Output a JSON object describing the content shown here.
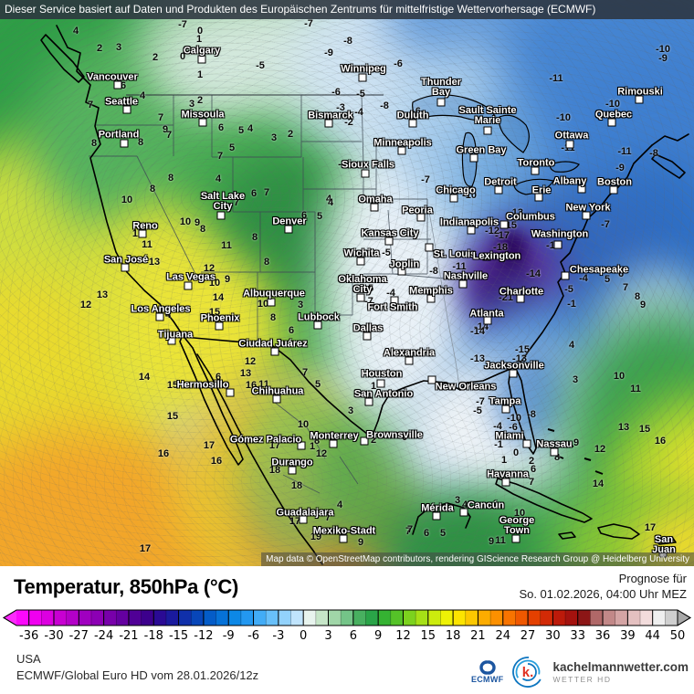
{
  "banner": {
    "text": "Dieser Service basiert auf Daten und Produkten des Europäischen Zentrums für mittelfristige Wettervorhersage (ECMWF)"
  },
  "map": {
    "attribution": "Map data © OpenStreetMap contributors, rendering GIScience Research Group @ Heidelberg University",
    "cities": [
      [
        "Vancouver",
        123,
        85,
        129,
        93
      ],
      [
        "Seattle",
        133,
        112,
        139,
        120
      ],
      [
        "Portland",
        130,
        148,
        136,
        157
      ],
      [
        "Calgary",
        221,
        56,
        221,
        65
      ],
      [
        "Missoula",
        222,
        126,
        222,
        134
      ],
      [
        "Bismarck",
        362,
        127,
        360,
        135
      ],
      [
        "Winnipeg",
        398,
        76,
        397,
        85
      ],
      [
        "Thunder\nBay",
        483,
        96,
        483,
        112
      ],
      [
        "Duluth",
        452,
        127,
        452,
        135
      ],
      [
        "Minneapolis",
        441,
        157,
        440,
        165
      ],
      [
        "Sioux Falls",
        403,
        181,
        400,
        190
      ],
      [
        "Sault Sainte\nMarie",
        534,
        127,
        534,
        143
      ],
      [
        "Green Bay",
        527,
        165,
        519,
        173
      ],
      [
        "Toronto",
        587,
        179,
        586,
        187
      ],
      [
        "Ottawa",
        626,
        149,
        624,
        158
      ],
      [
        "Quebec",
        672,
        126,
        670,
        134
      ],
      [
        "Rimouski",
        701,
        101,
        700,
        109
      ],
      [
        "Detroit",
        548,
        200,
        546,
        208
      ],
      [
        "Erie",
        593,
        209,
        590,
        216
      ],
      [
        "Albany",
        624,
        199,
        637,
        207
      ],
      [
        "Boston",
        673,
        200,
        672,
        208
      ],
      [
        "New York",
        644,
        228,
        642,
        236
      ],
      [
        "Chicago",
        499,
        209,
        497,
        217
      ],
      [
        "Peoria",
        457,
        231,
        461,
        238
      ],
      [
        "Indianapolis",
        514,
        244,
        516,
        252
      ],
      [
        "Columbus",
        581,
        238,
        552,
        246
      ],
      [
        "Washington",
        613,
        257,
        611,
        268
      ],
      [
        "St. Louis",
        498,
        279,
        470,
        271
      ],
      [
        "Lexington",
        544,
        281,
        533,
        281
      ],
      [
        "Kansas City",
        427,
        256,
        426,
        264
      ],
      [
        "Wichita",
        396,
        278,
        395,
        286
      ],
      [
        "Joplin",
        443,
        290,
        440,
        297
      ],
      [
        "Oklahoma\nCity",
        397,
        312,
        395,
        326
      ],
      [
        "Fort Smith",
        430,
        337,
        432,
        329
      ],
      [
        "Dallas",
        403,
        360,
        402,
        368
      ],
      [
        "Lubbock",
        349,
        348,
        348,
        356
      ],
      [
        "Memphis",
        472,
        319,
        472,
        327
      ],
      [
        "Nashville",
        510,
        303,
        507,
        311
      ],
      [
        "Atlanta",
        533,
        344,
        534,
        351
      ],
      [
        "Charlotte",
        571,
        320,
        570,
        327
      ],
      [
        "Chesapeake",
        656,
        296,
        619,
        302
      ],
      [
        "Jacksonville",
        563,
        401,
        562,
        409
      ],
      [
        "New Orleans",
        510,
        424,
        473,
        416
      ],
      [
        "Alexandria",
        448,
        387,
        448,
        395
      ],
      [
        "Houston",
        418,
        410,
        417,
        420
      ],
      [
        "San Antonio",
        420,
        432,
        404,
        440
      ],
      [
        "Brownsville",
        432,
        477,
        399,
        483
      ],
      [
        "Tampa",
        553,
        440,
        554,
        448
      ],
      [
        "Miami",
        558,
        478,
        577,
        486
      ],
      [
        "Nassau",
        607,
        487,
        607,
        495
      ],
      [
        "Havanna",
        556,
        520,
        554,
        528
      ],
      [
        "Mérida",
        479,
        557,
        478,
        565
      ],
      [
        "Cancún",
        532,
        554,
        508,
        561
      ],
      [
        "George\nTown",
        566,
        576,
        565,
        590
      ],
      [
        "San Juan",
        727,
        597,
        726,
        606
      ],
      [
        "Hermosillo",
        222,
        422,
        252,
        430
      ],
      [
        "Chihuahua",
        304,
        429,
        303,
        437
      ],
      [
        "Ciudad Juárez",
        299,
        377,
        301,
        385
      ],
      [
        "Gómez Palacio",
        291,
        482,
        330,
        488
      ],
      [
        "Durango",
        320,
        507,
        320,
        515
      ],
      [
        "Monterrey",
        366,
        478,
        365,
        486
      ],
      [
        "Guadalajara",
        334,
        562,
        332,
        569
      ],
      [
        "Mexiko-Stadt",
        377,
        582,
        376,
        590
      ],
      [
        "Denver",
        317,
        243,
        316,
        251
      ],
      [
        "Salt Lake\nCity",
        244,
        221,
        242,
        236
      ],
      [
        "Reno",
        159,
        248,
        156,
        256
      ],
      [
        "San José",
        138,
        285,
        137,
        293
      ],
      [
        "Las Vegas",
        209,
        304,
        206,
        313
      ],
      [
        "Los Angeles",
        176,
        339,
        175,
        347
      ],
      [
        "Tijuana",
        192,
        367,
        188,
        373
      ],
      [
        "Phoenix",
        241,
        349,
        240,
        357
      ],
      [
        "Albuquerque",
        300,
        322,
        297,
        331
      ],
      [
        "Omaha",
        411,
        219,
        410,
        227
      ]
    ],
    "temps": [
      [
        "4",
        83,
        34
      ],
      [
        "0",
        219,
        34
      ],
      [
        "1",
        218,
        43
      ],
      [
        "2",
        109,
        53
      ],
      [
        "3",
        130,
        52
      ],
      [
        "2",
        170,
        63
      ],
      [
        "0",
        200,
        62
      ],
      [
        "1",
        219,
        82
      ],
      [
        "6",
        135,
        94
      ],
      [
        "-5",
        285,
        72
      ],
      [
        "-7",
        200,
        27
      ],
      [
        "-7",
        338,
        26
      ],
      [
        "7",
        99,
        115
      ],
      [
        "4",
        156,
        105
      ],
      [
        "2",
        219,
        110
      ],
      [
        "3",
        210,
        114
      ],
      [
        "7",
        176,
        129
      ],
      [
        "9",
        181,
        142
      ],
      [
        "7",
        185,
        148
      ],
      [
        "6",
        242,
        140
      ],
      [
        "5",
        264,
        143
      ],
      [
        "4",
        274,
        141
      ],
      [
        "3",
        300,
        151
      ],
      [
        "2",
        318,
        147
      ],
      [
        "8",
        103,
        157
      ],
      [
        "8",
        154,
        156
      ],
      [
        "7",
        241,
        171
      ],
      [
        "5",
        254,
        162
      ],
      [
        "-9",
        360,
        58
      ],
      [
        "-8",
        381,
        45
      ],
      [
        "-6",
        368,
        101
      ],
      [
        "-3",
        373,
        118
      ],
      [
        "-4",
        393,
        123
      ],
      [
        "-2",
        382,
        134
      ],
      [
        "-6",
        436,
        70
      ],
      [
        "-5",
        395,
        103
      ],
      [
        "-8",
        421,
        116
      ],
      [
        "-6",
        456,
        122
      ],
      [
        "-1",
        375,
        180
      ],
      [
        "-7",
        466,
        197
      ],
      [
        "-11",
        609,
        86
      ],
      [
        "-10",
        726,
        54
      ],
      [
        "-9",
        726,
        64
      ],
      [
        "-10",
        671,
        114
      ],
      [
        "-10",
        617,
        129
      ],
      [
        "-11",
        622,
        162
      ],
      [
        "-11",
        684,
        166
      ],
      [
        "-9",
        679,
        184
      ],
      [
        "-8",
        716,
        168
      ],
      [
        "-7",
        663,
        246
      ],
      [
        "-10",
        514,
        214
      ],
      [
        "-12",
        539,
        253
      ],
      [
        "-15",
        558,
        247
      ],
      [
        "-13",
        565,
        233
      ],
      [
        "-17",
        550,
        258
      ],
      [
        "-18",
        548,
        271
      ],
      [
        "-12",
        606,
        269
      ],
      [
        "-11",
        503,
        292
      ],
      [
        "-8",
        475,
        297
      ],
      [
        "-14",
        584,
        300
      ],
      [
        "-21",
        554,
        326
      ],
      [
        "-5",
        623,
        317
      ],
      [
        "-1",
        626,
        333
      ],
      [
        "-4",
        639,
        305
      ],
      [
        "-14",
        527,
        358
      ],
      [
        "5",
        665,
        306
      ],
      [
        "6",
        680,
        300
      ],
      [
        "7",
        685,
        315
      ],
      [
        "8",
        698,
        325
      ],
      [
        "9",
        704,
        334
      ],
      [
        "4",
        360,
        218
      ],
      [
        "6",
        333,
        236
      ],
      [
        "5",
        350,
        237
      ],
      [
        "4",
        362,
        222
      ],
      [
        "-5",
        423,
        277
      ],
      [
        "-4",
        428,
        321
      ],
      [
        "-7",
        404,
        330
      ],
      [
        "5",
        406,
        316
      ],
      [
        "8",
        187,
        195
      ],
      [
        "4",
        239,
        196
      ],
      [
        "8",
        167,
        207
      ],
      [
        "10",
        139,
        219
      ],
      [
        "6",
        278,
        212
      ],
      [
        "7",
        292,
        211
      ],
      [
        "7",
        259,
        222
      ],
      [
        "10",
        203,
        243
      ],
      [
        "9",
        216,
        244
      ],
      [
        "8",
        222,
        251
      ],
      [
        "12",
        151,
        256
      ],
      [
        "11",
        161,
        268
      ],
      [
        "11",
        248,
        269
      ],
      [
        "8",
        279,
        260
      ],
      [
        "8",
        292,
        287
      ],
      [
        "13",
        169,
        287
      ],
      [
        "13",
        112,
        323
      ],
      [
        "12",
        94,
        334
      ],
      [
        "12",
        229,
        294
      ],
      [
        "10",
        235,
        310
      ],
      [
        "9",
        249,
        306
      ],
      [
        "14",
        239,
        326
      ],
      [
        "15",
        235,
        342
      ],
      [
        "10",
        288,
        333
      ],
      [
        "3",
        329,
        334
      ],
      [
        "8",
        299,
        348
      ],
      [
        "6",
        319,
        362
      ],
      [
        "4",
        184,
        345
      ],
      [
        "14",
        158,
        413
      ],
      [
        "15",
        189,
        422
      ],
      [
        "15",
        189,
        456
      ],
      [
        "16",
        179,
        497
      ],
      [
        "17",
        229,
        488
      ],
      [
        "16",
        237,
        505
      ],
      [
        "17",
        159,
        601
      ],
      [
        "6",
        239,
        413
      ],
      [
        "12",
        274,
        396
      ],
      [
        "13",
        269,
        409
      ],
      [
        "16",
        275,
        422
      ],
      [
        "11",
        289,
        421
      ],
      [
        "7",
        334,
        408
      ],
      [
        "5",
        348,
        421
      ],
      [
        "10",
        332,
        465
      ],
      [
        "8",
        347,
        483
      ],
      [
        "1",
        342,
        489
      ],
      [
        "12",
        352,
        497
      ],
      [
        "17",
        301,
        488
      ],
      [
        "18",
        301,
        515
      ],
      [
        "18",
        325,
        532
      ],
      [
        "4",
        372,
        553
      ],
      [
        "7",
        359,
        567
      ],
      [
        "17",
        323,
        571
      ],
      [
        "19",
        346,
        588
      ],
      [
        "9",
        395,
        594
      ],
      [
        "7",
        447,
        582
      ],
      [
        "1",
        409,
        423
      ],
      [
        "3",
        384,
        450
      ],
      [
        "2",
        409,
        482
      ],
      [
        "0",
        443,
        479
      ],
      [
        "-14",
        523,
        363
      ],
      [
        "-15",
        572,
        383
      ],
      [
        "-13",
        523,
        393
      ],
      [
        "-13",
        569,
        393
      ],
      [
        "4",
        626,
        378
      ],
      [
        "3",
        630,
        416
      ],
      [
        "10",
        678,
        412
      ],
      [
        "11",
        696,
        426
      ],
      [
        "-7",
        526,
        440
      ],
      [
        "-5",
        523,
        450
      ],
      [
        "-10",
        563,
        458
      ],
      [
        "-4",
        545,
        467
      ],
      [
        "-8",
        582,
        454
      ],
      [
        "-6",
        562,
        468
      ],
      [
        "-1",
        546,
        487
      ],
      [
        "0",
        565,
        496
      ],
      [
        "1",
        552,
        504
      ],
      [
        "2",
        582,
        505
      ],
      [
        "6",
        584,
        514
      ],
      [
        "9",
        631,
        485
      ],
      [
        "8",
        610,
        501
      ],
      [
        "7",
        582,
        528
      ],
      [
        "12",
        657,
        492
      ],
      [
        "13",
        683,
        468
      ],
      [
        "15",
        706,
        470
      ],
      [
        "16",
        723,
        483
      ],
      [
        "14",
        655,
        530
      ],
      [
        "3",
        501,
        548
      ],
      [
        "4",
        509,
        553
      ],
      [
        "7",
        449,
        580
      ],
      [
        "6",
        467,
        584
      ],
      [
        "5",
        485,
        584
      ],
      [
        "10",
        569,
        562
      ],
      [
        "9",
        538,
        593
      ],
      [
        "11",
        548,
        592
      ],
      [
        "17",
        712,
        578
      ]
    ]
  },
  "footer": {
    "title": "Temperatur, 850hPa (°C)",
    "forecast_label": "Prognose für",
    "forecast_time": "So. 01.02.2026, 04:00 Uhr MEZ",
    "region": "USA",
    "model_run": "ECMWF/Global Euro HD vom  28.01.2026/12z",
    "ecmwf_logo_text": "ECMWF",
    "brand_k": "k.",
    "brand": "kachelmannwetter.com",
    "brand_sub": "WETTER HD"
  },
  "legend": {
    "labels": [
      "-36",
      "-30",
      "-27",
      "-24",
      "-21",
      "-18",
      "-15",
      "-12",
      "-9",
      "-6",
      "-3",
      "0",
      "3",
      "6",
      "9",
      "12",
      "15",
      "18",
      "21",
      "24",
      "27",
      "30",
      "33",
      "36",
      "39",
      "44",
      "50"
    ],
    "cells": [
      "#fc08fc",
      "#f000f0",
      "#dc00e0",
      "#c800d2",
      "#b400c8",
      "#a000c0",
      "#8c00b4",
      "#7800aa",
      "#6400a0",
      "#500096",
      "#3c008c",
      "#2a0a94",
      "#1a1a9e",
      "#1030aa",
      "#0846b8",
      "#045cc8",
      "#0672d8",
      "#0d88e6",
      "#2398f0",
      "#42acf6",
      "#68c0fa",
      "#92d2fc",
      "#c0e4fd",
      "#e8f4ee",
      "#c6e6c8",
      "#a0d6a8",
      "#74c488",
      "#48b060",
      "#2aa448",
      "#35b232",
      "#55c228",
      "#7cd21e",
      "#a6e016",
      "#ccec0e",
      "#eef206",
      "#fce400",
      "#fcc800",
      "#fcac00",
      "#fc9000",
      "#f87400",
      "#f05800",
      "#e44000",
      "#d22a06",
      "#bc1a0a",
      "#a4120e",
      "#8c1616",
      "#b06868",
      "#c28888",
      "#d4a4a4",
      "#e4c0c0",
      "#f2dcdc",
      "#efefef",
      "#cfcfcf"
    ],
    "arrow_left_color": "#fc2afc",
    "arrow_right_color": "#a8a8a8"
  }
}
